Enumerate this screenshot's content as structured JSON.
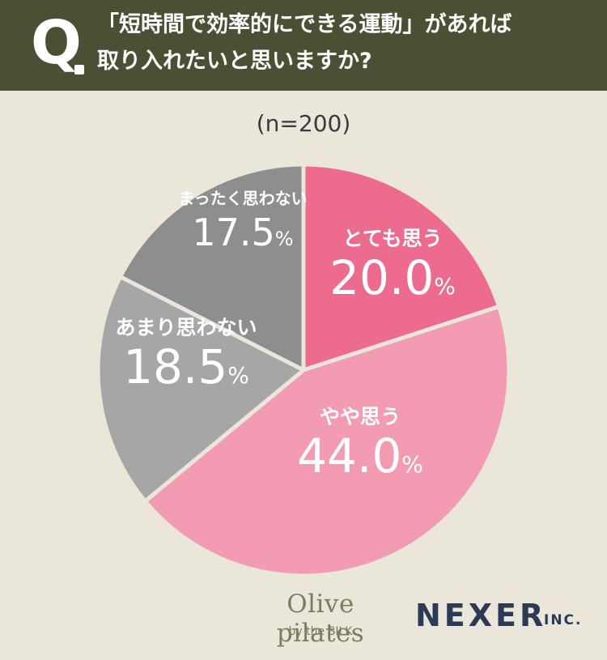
{
  "header": {
    "q_mark": "Q",
    "question_line1": "「短時間で効率的にできる運動」があれば",
    "question_line2": "取り入れたいと思いますか?",
    "background": "#4d4f34"
  },
  "sample_label": "(n=200)",
  "chart_data": {
    "type": "pie",
    "categories": [
      "とても思う",
      "やや思う",
      "あまり思わない",
      "まったく思わない"
    ],
    "values": [
      20.0,
      44.0,
      18.5,
      17.5
    ],
    "value_labels": [
      "20.0",
      "44.0",
      "18.5",
      "17.5"
    ],
    "unit": "%",
    "colors": [
      "#ed6b8f",
      "#f29bb3",
      "#a6a6a6",
      "#8e8e8e"
    ],
    "start_angle": "12 o'clock",
    "direction": "clockwise"
  },
  "logos": {
    "olive_main": "Olive pilates",
    "olive_sub": "by the SILK",
    "nexer": "NEXER",
    "nexer_suffix": "INC."
  }
}
